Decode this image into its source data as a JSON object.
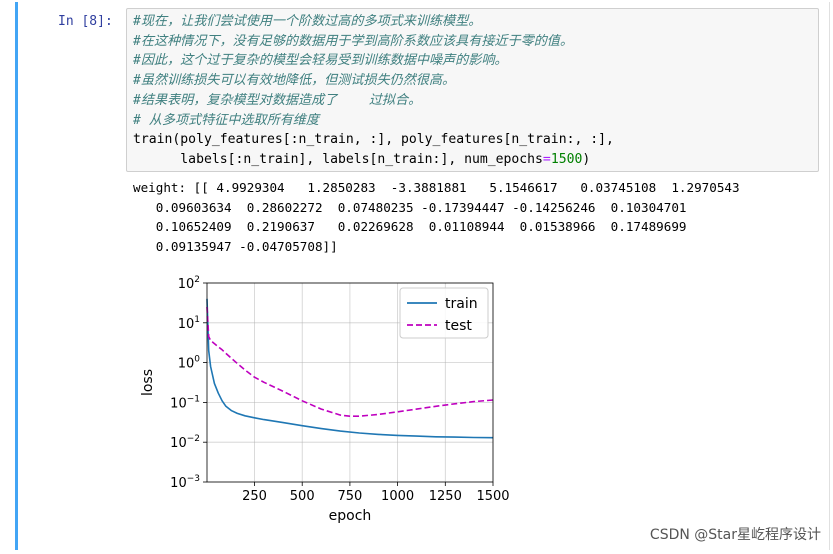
{
  "cell": {
    "prompt": "In [8]:",
    "code_lines": [
      {
        "text": "#现在，让我们尝试使用一个阶数过高的多项式来训练模型。",
        "kind": "comment"
      },
      {
        "text": "#在这种情况下，没有足够的数据用于学到高阶系数应该具有接近于零的值。",
        "kind": "comment"
      },
      {
        "text": "#因此，这个过于复杂的模型会轻易受到训练数据中噪声的影响。",
        "kind": "comment"
      },
      {
        "text": "#虽然训练损失可以有效地降低，但测试损失仍然很高。",
        "kind": "comment"
      },
      {
        "text": "#结果表明，复杂模型对数据造成了    过拟合。",
        "kind": "comment"
      },
      {
        "text": "# 从多项式特征中选取所有维度",
        "kind": "comment"
      },
      {
        "text": "train(poly_features[:n_train, :], poly_features[n_train:, :],",
        "kind": "code"
      },
      {
        "text": "      labels[:n_train], labels[n_train:], num_epochs",
        "kind": "code",
        "op": "=",
        "num": "1500",
        "tail": ")"
      }
    ],
    "output_lines": [
      "weight: [[ 4.9929304   1.2850283  -3.3881881   5.1546617   0.03745108  1.2970543",
      "   0.09603634  0.28602272  0.07480235 -0.17394447 -0.14256246  0.10304701",
      "   0.10652409  0.2190637   0.02269628  0.01108944  0.01538966  0.17489699",
      "   0.09135947 -0.04705708]]"
    ]
  },
  "chart_data": {
    "type": "line",
    "xlabel": "epoch",
    "ylabel": "loss",
    "xlim": [
      1,
      1500
    ],
    "ylim": [
      0.001,
      100
    ],
    "yscale": "log",
    "grid": true,
    "legend_position": "top-right",
    "xticks": [
      250,
      500,
      750,
      1000,
      1250,
      1500
    ],
    "xtick_labels": [
      "250",
      "500",
      "750",
      "1000",
      "1250",
      "1500"
    ],
    "yticks": [
      0.001,
      0.01,
      0.1,
      1,
      10,
      100
    ],
    "ytick_labels": [
      {
        "base": "10",
        "exp": "−3"
      },
      {
        "base": "10",
        "exp": "−2"
      },
      {
        "base": "10",
        "exp": "−1"
      },
      {
        "base": "10",
        "exp": "0"
      },
      {
        "base": "10",
        "exp": "1"
      },
      {
        "base": "10",
        "exp": "2"
      }
    ],
    "series": [
      {
        "name": "train",
        "color": "#1f77b4",
        "style": "solid",
        "x": [
          1,
          10,
          20,
          40,
          60,
          80,
          100,
          130,
          160,
          200,
          250,
          300,
          400,
          500,
          600,
          700,
          800,
          900,
          1000,
          1100,
          1200,
          1300,
          1400,
          1500
        ],
        "y": [
          40,
          2.0,
          0.8,
          0.3,
          0.17,
          0.11,
          0.08,
          0.062,
          0.053,
          0.046,
          0.041,
          0.037,
          0.031,
          0.026,
          0.022,
          0.019,
          0.017,
          0.0157,
          0.0148,
          0.0142,
          0.0137,
          0.0134,
          0.0131,
          0.013
        ]
      },
      {
        "name": "test",
        "color": "#bf00bf",
        "style": "dashed",
        "x": [
          1,
          10,
          20,
          40,
          60,
          80,
          100,
          150,
          200,
          250,
          300,
          400,
          500,
          600,
          700,
          750,
          800,
          900,
          1000,
          1100,
          1200,
          1300,
          1400,
          1500
        ],
        "y": [
          25,
          4.5,
          3.6,
          3.0,
          2.5,
          2.1,
          1.7,
          1.05,
          0.65,
          0.43,
          0.32,
          0.19,
          0.11,
          0.068,
          0.048,
          0.045,
          0.045,
          0.05,
          0.058,
          0.068,
          0.08,
          0.092,
          0.105,
          0.115
        ]
      }
    ]
  },
  "watermark": "CSDN @Star星屹程序设计"
}
